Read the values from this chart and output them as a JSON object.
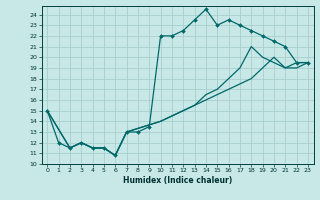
{
  "xlabel": "Humidex (Indice chaleur)",
  "background_color": "#c8e8e8",
  "grid_color": "#a8cece",
  "line_color": "#006868",
  "xlim": [
    -0.5,
    23.5
  ],
  "ylim": [
    10,
    24.8
  ],
  "xticks": [
    0,
    1,
    2,
    3,
    4,
    5,
    6,
    7,
    8,
    9,
    10,
    11,
    12,
    13,
    14,
    15,
    16,
    17,
    18,
    19,
    20,
    21,
    22,
    23
  ],
  "yticks": [
    10,
    11,
    12,
    13,
    14,
    15,
    16,
    17,
    18,
    19,
    20,
    21,
    22,
    23,
    24
  ],
  "line1_x": [
    0,
    1,
    2,
    3,
    4,
    5,
    6,
    7,
    8,
    9,
    10,
    11,
    12,
    13,
    14,
    15,
    16,
    17,
    18,
    19,
    20,
    21,
    22,
    23
  ],
  "line1_y": [
    15,
    12,
    11.5,
    12,
    11.5,
    11.5,
    10.8,
    13,
    13,
    13.5,
    22,
    22,
    22.5,
    23.5,
    24.5,
    23,
    23.5,
    23,
    22.5,
    22,
    21.5,
    21,
    19.5,
    19.5
  ],
  "line2_x": [
    0,
    2,
    3,
    4,
    5,
    6,
    7,
    10,
    11,
    12,
    13,
    14,
    15,
    16,
    17,
    18,
    19,
    20,
    21,
    22,
    23
  ],
  "line2_y": [
    15,
    11.5,
    12,
    11.5,
    11.5,
    10.8,
    13,
    14,
    14.5,
    15,
    15.5,
    16,
    16.5,
    17,
    17.5,
    18,
    19,
    20,
    19,
    19,
    19.5
  ],
  "line3_x": [
    0,
    2,
    3,
    4,
    5,
    6,
    7,
    10,
    11,
    12,
    13,
    14,
    15,
    16,
    17,
    18,
    19,
    20,
    21,
    22,
    23
  ],
  "line3_y": [
    15,
    11.5,
    12,
    11.5,
    11.5,
    10.8,
    13,
    14,
    14.5,
    15,
    15.5,
    16.5,
    17,
    18,
    19,
    21,
    20,
    19.5,
    19,
    19.5,
    19.5
  ]
}
